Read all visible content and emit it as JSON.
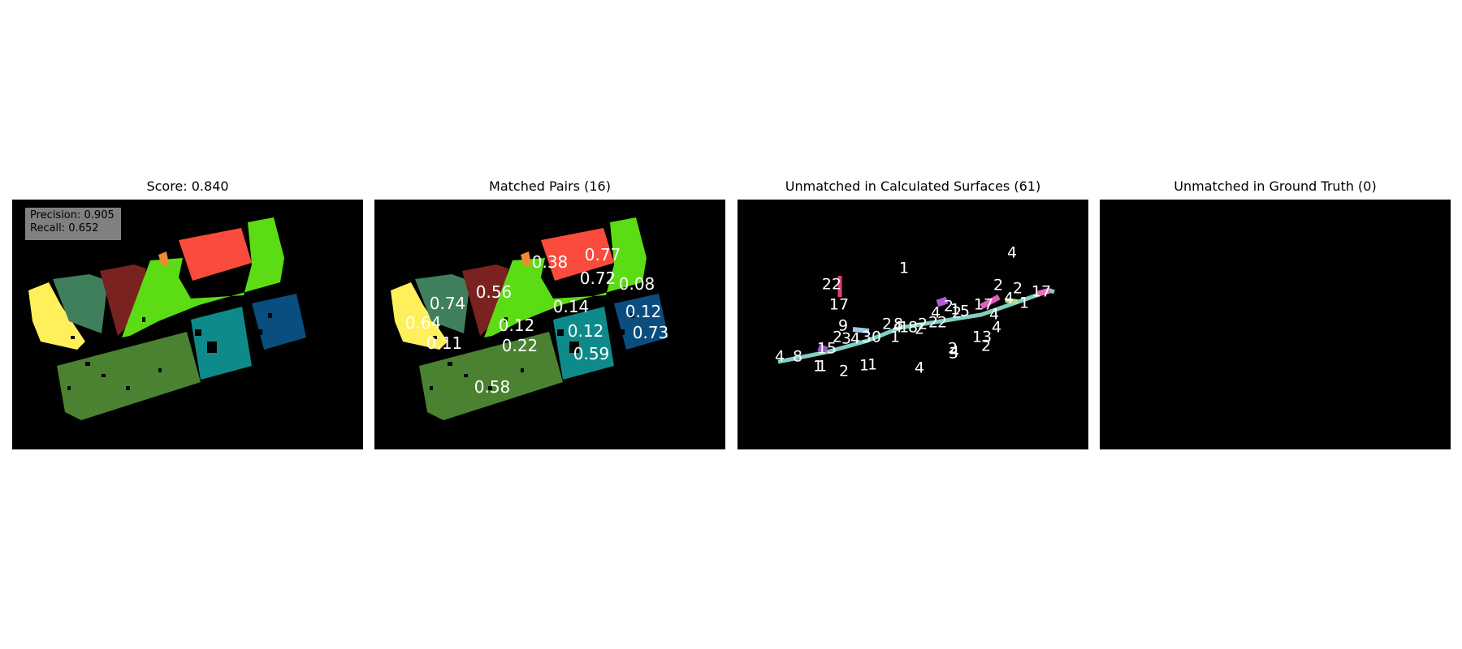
{
  "panels": [
    {
      "title": "Score: 0.840"
    },
    {
      "title": "Matched Pairs (16)"
    },
    {
      "title": "Unmatched in Calculated Surfaces (61)"
    },
    {
      "title": "Unmatched in Ground Truth (0)"
    }
  ],
  "metrics": {
    "precision": "Precision: 0.905",
    "recall": "Recall: 0.652"
  },
  "matched_labels": [
    "0.77",
    "0.38",
    "0.72",
    "0.08",
    "0.56",
    "0.74",
    "0.14",
    "0.12",
    "0.64",
    "0.12",
    "0.12",
    "0.73",
    "0.11",
    "0.22",
    "0.59",
    "0.58"
  ],
  "unmatched_labels": [
    "4",
    "1",
    "22",
    "2",
    "2",
    "17",
    "17",
    "4",
    "1",
    "2",
    "17",
    "2",
    "5",
    "4",
    "4",
    "2",
    "2",
    "2",
    "2",
    "8",
    "9",
    "4",
    "1",
    "4",
    "1",
    "8",
    "2",
    "30",
    "15",
    "1",
    "13",
    "4",
    "3",
    "2",
    "2",
    "4",
    "2",
    "4",
    "8",
    "3",
    "1",
    "1",
    "1",
    "2",
    "1",
    "4"
  ],
  "colors": {
    "background": "#000000",
    "bright_green": "#5cdc14",
    "red": "#fb4b3c",
    "olive_green": "#4b8232",
    "teal": "#0f8a8a",
    "blue": "#0a4e80",
    "yellow": "#fef05a",
    "dark_red": "#7a2220",
    "sea_green": "#3f7f5c",
    "orange": "#f08a30"
  }
}
